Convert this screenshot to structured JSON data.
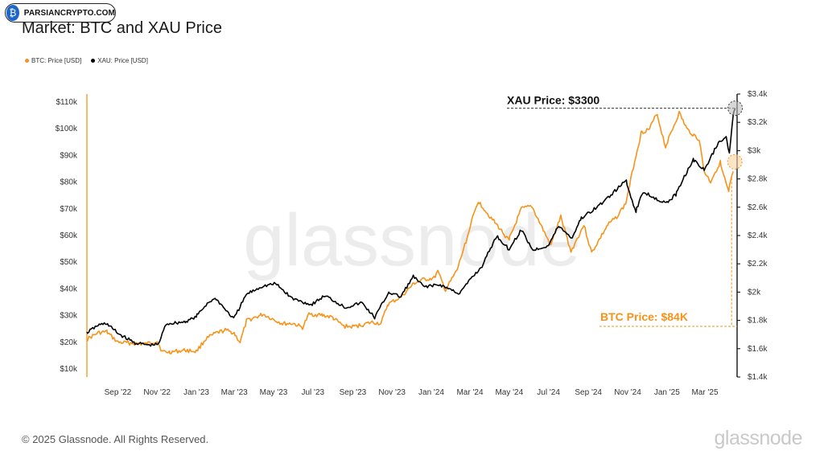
{
  "badge": {
    "text": "PARSIANCRYPTO.COM",
    "icon": "bitcoin-icon"
  },
  "title": "Market: BTC and XAU Price",
  "legend": [
    {
      "label": "BTC: Price [USD]",
      "color": "#f7931a"
    },
    {
      "label": "XAU: Price [USD]",
      "color": "#000000"
    }
  ],
  "watermark": "glassnode",
  "footer": "© 2025 Glassnode. All Rights Reserved.",
  "brand": "glassnode",
  "chart_data": {
    "type": "line",
    "x_ticks": [
      "Sep '22",
      "Nov '22",
      "Jan '23",
      "Mar '23",
      "May '23",
      "Jul '23",
      "Sep '23",
      "Nov '23",
      "Jan '24",
      "Mar '24",
      "May '24",
      "Jul '24",
      "Sep '24",
      "Nov '24",
      "Jan '25",
      "Mar '25"
    ],
    "y_left_ticks": [
      "$10k",
      "$20k",
      "$30k",
      "$40k",
      "$50k",
      "$60k",
      "$70k",
      "$80k",
      "$90k",
      "$100k",
      "$110k"
    ],
    "y_left_range": [
      7000,
      113000
    ],
    "y_right_ticks": [
      "$1.4k",
      "$1.6k",
      "$1.8k",
      "$2k",
      "$2.2k",
      "$2.4k",
      "$2.6k",
      "$2.8k",
      "$3k",
      "$3.2k",
      "$3.4k"
    ],
    "y_right_range": [
      1400,
      3400
    ],
    "x_range": [
      "2022-07-15",
      "2025-04-20"
    ],
    "series": [
      {
        "name": "BTC: Price [USD]",
        "color": "#f7931a",
        "axis": "left",
        "points": [
          [
            "2022-07-15",
            21000
          ],
          [
            "2022-08-01",
            23500
          ],
          [
            "2022-08-15",
            24000
          ],
          [
            "2022-09-01",
            20000
          ],
          [
            "2022-09-15",
            19800
          ],
          [
            "2022-10-01",
            19500
          ],
          [
            "2022-10-15",
            19300
          ],
          [
            "2022-11-01",
            20500
          ],
          [
            "2022-11-09",
            16500
          ],
          [
            "2022-11-20",
            16300
          ],
          [
            "2022-12-15",
            17000
          ],
          [
            "2023-01-01",
            16600
          ],
          [
            "2023-01-15",
            21000
          ],
          [
            "2023-02-01",
            23500
          ],
          [
            "2023-02-15",
            24500
          ],
          [
            "2023-03-01",
            23500
          ],
          [
            "2023-03-10",
            20000
          ],
          [
            "2023-03-20",
            28000
          ],
          [
            "2023-04-10",
            30000
          ],
          [
            "2023-04-15",
            30500
          ],
          [
            "2023-05-01",
            28500
          ],
          [
            "2023-05-15",
            27000
          ],
          [
            "2023-06-01",
            27000
          ],
          [
            "2023-06-15",
            25500
          ],
          [
            "2023-06-25",
            30500
          ],
          [
            "2023-07-15",
            30200
          ],
          [
            "2023-08-01",
            29300
          ],
          [
            "2023-08-18",
            26000
          ],
          [
            "2023-09-01",
            25800
          ],
          [
            "2023-09-15",
            26500
          ],
          [
            "2023-10-01",
            27500
          ],
          [
            "2023-10-15",
            27000
          ],
          [
            "2023-10-25",
            34000
          ],
          [
            "2023-11-15",
            37000
          ],
          [
            "2023-12-05",
            42000
          ],
          [
            "2023-12-20",
            43500
          ],
          [
            "2024-01-05",
            44000
          ],
          [
            "2024-01-11",
            46500
          ],
          [
            "2024-01-23",
            39500
          ],
          [
            "2024-02-10",
            47000
          ],
          [
            "2024-02-28",
            61000
          ],
          [
            "2024-03-14",
            73000
          ],
          [
            "2024-03-25",
            69500
          ],
          [
            "2024-04-15",
            63000
          ],
          [
            "2024-05-01",
            58000
          ],
          [
            "2024-05-20",
            70000
          ],
          [
            "2024-06-05",
            71000
          ],
          [
            "2024-06-25",
            61000
          ],
          [
            "2024-07-05",
            56000
          ],
          [
            "2024-07-20",
            67000
          ],
          [
            "2024-08-05",
            54000
          ],
          [
            "2024-08-25",
            64000
          ],
          [
            "2024-09-06",
            53500
          ],
          [
            "2024-09-30",
            63500
          ],
          [
            "2024-10-15",
            67000
          ],
          [
            "2024-10-29",
            72000
          ],
          [
            "2024-11-12",
            88000
          ],
          [
            "2024-11-22",
            98500
          ],
          [
            "2024-12-05",
            100000
          ],
          [
            "2024-12-17",
            106000
          ],
          [
            "2024-12-30",
            93000
          ],
          [
            "2025-01-20",
            106000
          ],
          [
            "2025-02-01",
            100000
          ],
          [
            "2025-02-20",
            96000
          ],
          [
            "2025-02-28",
            84000
          ],
          [
            "2025-03-10",
            80000
          ],
          [
            "2025-03-25",
            87500
          ],
          [
            "2025-04-07",
            76000
          ],
          [
            "2025-04-14",
            84000
          ]
        ]
      },
      {
        "name": "XAU: Price [USD]",
        "color": "#000000",
        "axis": "right",
        "points": [
          [
            "2022-07-15",
            1710
          ],
          [
            "2022-08-01",
            1765
          ],
          [
            "2022-08-15",
            1780
          ],
          [
            "2022-09-01",
            1710
          ],
          [
            "2022-09-28",
            1640
          ],
          [
            "2022-10-20",
            1625
          ],
          [
            "2022-11-03",
            1630
          ],
          [
            "2022-11-15",
            1775
          ],
          [
            "2022-12-15",
            1790
          ],
          [
            "2023-01-01",
            1825
          ],
          [
            "2023-01-20",
            1930
          ],
          [
            "2023-02-01",
            1955
          ],
          [
            "2023-02-28",
            1810
          ],
          [
            "2023-03-20",
            1985
          ],
          [
            "2023-04-13",
            2040
          ],
          [
            "2023-05-04",
            2060
          ],
          [
            "2023-05-30",
            1955
          ],
          [
            "2023-06-29",
            1910
          ],
          [
            "2023-07-20",
            1975
          ],
          [
            "2023-08-21",
            1890
          ],
          [
            "2023-09-15",
            1925
          ],
          [
            "2023-10-05",
            1820
          ],
          [
            "2023-10-27",
            2000
          ],
          [
            "2023-11-15",
            1965
          ],
          [
            "2023-12-04",
            2110
          ],
          [
            "2023-12-20",
            2040
          ],
          [
            "2024-01-15",
            2050
          ],
          [
            "2024-02-14",
            1990
          ],
          [
            "2024-03-01",
            2085
          ],
          [
            "2024-03-20",
            2180
          ],
          [
            "2024-04-12",
            2400
          ],
          [
            "2024-05-01",
            2300
          ],
          [
            "2024-05-20",
            2440
          ],
          [
            "2024-06-07",
            2295
          ],
          [
            "2024-07-01",
            2330
          ],
          [
            "2024-07-17",
            2470
          ],
          [
            "2024-08-07",
            2380
          ],
          [
            "2024-08-20",
            2515
          ],
          [
            "2024-09-20",
            2620
          ],
          [
            "2024-10-30",
            2790
          ],
          [
            "2024-11-14",
            2565
          ],
          [
            "2024-11-25",
            2710
          ],
          [
            "2024-12-31",
            2625
          ],
          [
            "2025-01-15",
            2690
          ],
          [
            "2025-02-11",
            2940
          ],
          [
            "2025-02-28",
            2860
          ],
          [
            "2025-03-20",
            3040
          ],
          [
            "2025-04-03",
            3110
          ],
          [
            "2025-04-08",
            2985
          ],
          [
            "2025-04-14",
            3245
          ],
          [
            "2025-04-17",
            3300
          ]
        ]
      }
    ],
    "annotations": [
      {
        "text": "XAU Price: $3300",
        "series": "XAU: Price [USD]",
        "value": 3300
      },
      {
        "text": "BTC Price: $84K",
        "series": "BTC: Price [USD]",
        "value": 84000
      }
    ]
  }
}
